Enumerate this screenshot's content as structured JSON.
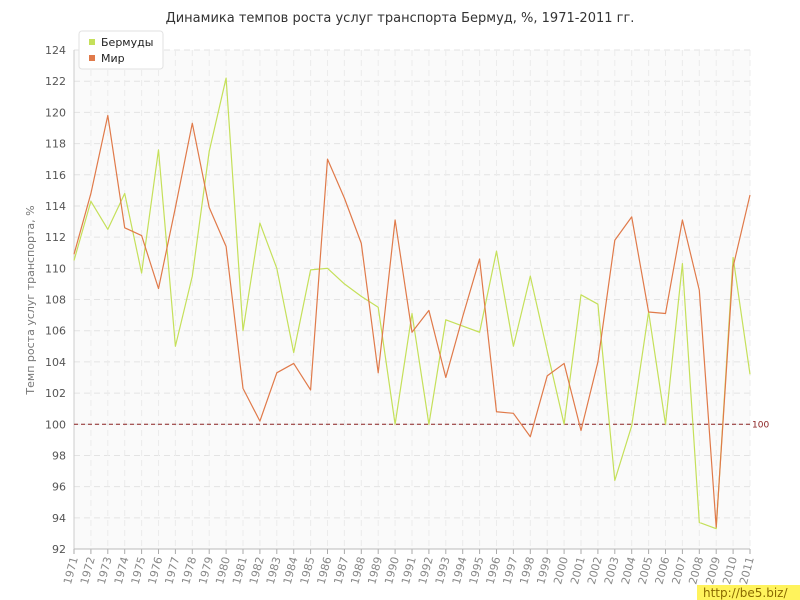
{
  "chart_data": {
    "type": "line",
    "title": "Динамика темпов роста услуг транспорта Бермуд, %, 1971-2011 гг.",
    "ylabel": "Темп роста услуг транспорта, %",
    "xlabel": "",
    "ylim": [
      92,
      124
    ],
    "yticks": [
      92,
      94,
      96,
      98,
      100,
      102,
      104,
      106,
      108,
      110,
      112,
      114,
      116,
      118,
      120,
      122,
      124
    ],
    "x": [
      "1971",
      "1972",
      "1973",
      "1974",
      "1975",
      "1976",
      "1977",
      "1978",
      "1979",
      "1980",
      "1981",
      "1982",
      "1983",
      "1984",
      "1985",
      "1986",
      "1987",
      "1988",
      "1989",
      "1990",
      "1991",
      "1992",
      "1993",
      "1994",
      "1995",
      "1996",
      "1997",
      "1998",
      "1999",
      "2000",
      "2001",
      "2002",
      "2003",
      "2004",
      "2005",
      "2006",
      "2007",
      "2008",
      "2009",
      "2010",
      "2011"
    ],
    "series": [
      {
        "name": "Бермуды",
        "color": "#c5e05a",
        "values": [
          110.5,
          114.3,
          112.5,
          114.8,
          109.7,
          117.6,
          105.0,
          109.5,
          117.5,
          122.2,
          106.0,
          112.9,
          110.0,
          104.6,
          109.9,
          110.0,
          109.0,
          108.2,
          107.5,
          100.0,
          107.1,
          100.0,
          106.7,
          106.3,
          105.9,
          111.1,
          105.0,
          109.5,
          104.7,
          100.0,
          108.3,
          107.7,
          96.4,
          99.9,
          107.2,
          100.0,
          110.3,
          93.7,
          93.3,
          110.7,
          103.2
        ]
      },
      {
        "name": "Мир",
        "color": "#e07a4a",
        "values": [
          110.9,
          114.8,
          119.8,
          112.6,
          112.1,
          108.7,
          113.9,
          119.3,
          113.9,
          111.4,
          102.3,
          100.2,
          103.3,
          103.9,
          102.2,
          117.0,
          114.5,
          111.6,
          103.3,
          113.1,
          105.9,
          107.3,
          103.0,
          106.9,
          110.6,
          100.8,
          100.7,
          99.2,
          103.1,
          103.9,
          99.6,
          104.0,
          111.8,
          113.3,
          107.2,
          107.1,
          113.1,
          108.6,
          93.4,
          110.1,
          114.7
        ]
      }
    ],
    "reference_line": {
      "value": 100,
      "label": "100",
      "color": "#8b2222"
    },
    "grid": true,
    "legend_position": "top-left"
  },
  "watermark": "http://be5.biz/"
}
